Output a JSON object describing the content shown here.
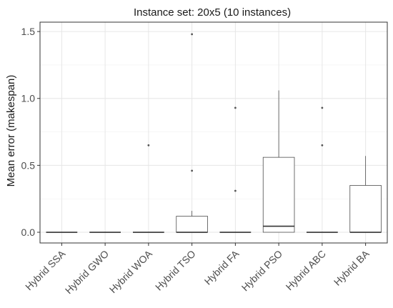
{
  "chart_data": {
    "type": "boxplot",
    "title": "Instance set: 20x5 (10 instances)",
    "xlabel": "",
    "ylabel": "Mean error (makespan)",
    "ylim": [
      -0.08,
      1.57
    ],
    "yticks": [
      0.0,
      0.5,
      1.0,
      1.5
    ],
    "ytick_labels": [
      "0.0",
      "0.5",
      "1.0",
      "1.5"
    ],
    "grid": true,
    "categories": [
      "Hybrid SSA",
      "Hybrid GWO",
      "Hybrid WOA",
      "Hybrid TSO",
      "Hybrid FA",
      "Hybrid PSO",
      "Hybrid ABC",
      "Hybrid BA"
    ],
    "boxes": [
      {
        "min": 0,
        "q1": 0,
        "median": 0,
        "q3": 0,
        "max": 0,
        "outliers": []
      },
      {
        "min": 0,
        "q1": 0,
        "median": 0,
        "q3": 0,
        "max": 0,
        "outliers": []
      },
      {
        "min": 0,
        "q1": 0,
        "median": 0,
        "q3": 0,
        "max": 0,
        "outliers": [
          0.65
        ]
      },
      {
        "min": 0,
        "q1": 0,
        "median": 0,
        "q3": 0.12,
        "max": 0.16,
        "outliers": [
          0.46,
          1.48
        ]
      },
      {
        "min": 0,
        "q1": 0,
        "median": 0,
        "q3": 0,
        "max": 0,
        "outliers": [
          0.31,
          0.93
        ]
      },
      {
        "min": 0,
        "q1": 0,
        "median": 0.045,
        "q3": 0.56,
        "max": 1.06,
        "outliers": []
      },
      {
        "min": 0,
        "q1": 0,
        "median": 0,
        "q3": 0,
        "max": 0,
        "outliers": [
          0.65,
          0.93
        ]
      },
      {
        "min": 0,
        "q1": 0,
        "median": 0,
        "q3": 0.35,
        "max": 0.57,
        "outliers": []
      }
    ]
  }
}
